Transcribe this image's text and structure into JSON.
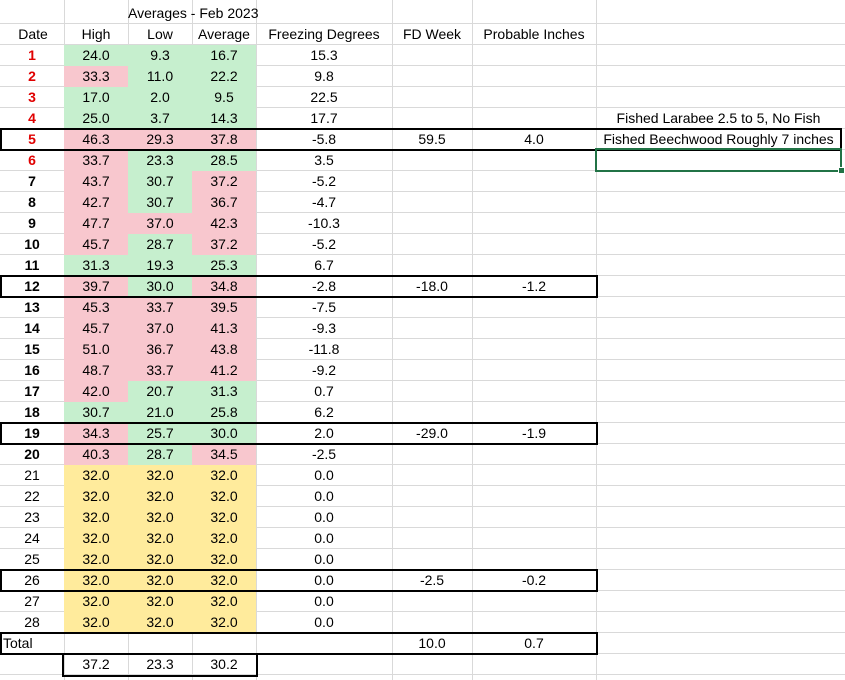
{
  "sheet": {
    "title": "Averages - Feb 2023",
    "headers": [
      "Date",
      "High",
      "Low",
      "Average",
      "Freezing Degrees",
      "FD Week",
      "Probable Inches"
    ],
    "rows": [
      {
        "date": "1",
        "high": "24.0",
        "low": "9.3",
        "avg": "16.7",
        "fd": "15.3",
        "fdw": "",
        "pi": "",
        "date_style": "red",
        "fills": [
          "green",
          "green",
          "green"
        ]
      },
      {
        "date": "2",
        "high": "33.3",
        "low": "11.0",
        "avg": "22.2",
        "fd": "9.8",
        "fdw": "",
        "pi": "",
        "date_style": "red",
        "fills": [
          "red",
          "green",
          "green"
        ]
      },
      {
        "date": "3",
        "high": "17.0",
        "low": "2.0",
        "avg": "9.5",
        "fd": "22.5",
        "fdw": "",
        "pi": "",
        "date_style": "red",
        "fills": [
          "green",
          "green",
          "green"
        ]
      },
      {
        "date": "4",
        "high": "25.0",
        "low": "3.7",
        "avg": "14.3",
        "fd": "17.7",
        "fdw": "",
        "pi": "",
        "date_style": "red",
        "fills": [
          "green",
          "green",
          "green"
        ]
      },
      {
        "date": "5",
        "high": "46.3",
        "low": "29.3",
        "avg": "37.8",
        "fd": "-5.8",
        "fdw": "59.5",
        "pi": "4.0",
        "date_style": "red",
        "fills": [
          "red",
          "red",
          "red"
        ]
      },
      {
        "date": "6",
        "high": "33.7",
        "low": "23.3",
        "avg": "28.5",
        "fd": "3.5",
        "fdw": "",
        "pi": "",
        "date_style": "red",
        "fills": [
          "red",
          "green",
          "green"
        ]
      },
      {
        "date": "7",
        "high": "43.7",
        "low": "30.7",
        "avg": "37.2",
        "fd": "-5.2",
        "fdw": "",
        "pi": "",
        "date_style": "bold",
        "fills": [
          "red",
          "green",
          "red"
        ]
      },
      {
        "date": "8",
        "high": "42.7",
        "low": "30.7",
        "avg": "36.7",
        "fd": "-4.7",
        "fdw": "",
        "pi": "",
        "date_style": "bold",
        "fills": [
          "red",
          "green",
          "red"
        ]
      },
      {
        "date": "9",
        "high": "47.7",
        "low": "37.0",
        "avg": "42.3",
        "fd": "-10.3",
        "fdw": "",
        "pi": "",
        "date_style": "bold",
        "fills": [
          "red",
          "red",
          "red"
        ]
      },
      {
        "date": "10",
        "high": "45.7",
        "low": "28.7",
        "avg": "37.2",
        "fd": "-5.2",
        "fdw": "",
        "pi": "",
        "date_style": "bold",
        "fills": [
          "red",
          "green",
          "red"
        ]
      },
      {
        "date": "11",
        "high": "31.3",
        "low": "19.3",
        "avg": "25.3",
        "fd": "6.7",
        "fdw": "",
        "pi": "",
        "date_style": "bold",
        "fills": [
          "green",
          "green",
          "green"
        ]
      },
      {
        "date": "12",
        "high": "39.7",
        "low": "30.0",
        "avg": "34.8",
        "fd": "-2.8",
        "fdw": "-18.0",
        "pi": "-1.2",
        "date_style": "bold",
        "fills": [
          "red",
          "green",
          "red"
        ]
      },
      {
        "date": "13",
        "high": "45.3",
        "low": "33.7",
        "avg": "39.5",
        "fd": "-7.5",
        "fdw": "",
        "pi": "",
        "date_style": "bold",
        "fills": [
          "red",
          "red",
          "red"
        ]
      },
      {
        "date": "14",
        "high": "45.7",
        "low": "37.0",
        "avg": "41.3",
        "fd": "-9.3",
        "fdw": "",
        "pi": "",
        "date_style": "bold",
        "fills": [
          "red",
          "red",
          "red"
        ]
      },
      {
        "date": "15",
        "high": "51.0",
        "low": "36.7",
        "avg": "43.8",
        "fd": "-11.8",
        "fdw": "",
        "pi": "",
        "date_style": "bold",
        "fills": [
          "red",
          "red",
          "red"
        ]
      },
      {
        "date": "16",
        "high": "48.7",
        "low": "33.7",
        "avg": "41.2",
        "fd": "-9.2",
        "fdw": "",
        "pi": "",
        "date_style": "bold",
        "fills": [
          "red",
          "red",
          "red"
        ]
      },
      {
        "date": "17",
        "high": "42.0",
        "low": "20.7",
        "avg": "31.3",
        "fd": "0.7",
        "fdw": "",
        "pi": "",
        "date_style": "bold",
        "fills": [
          "red",
          "green",
          "green"
        ]
      },
      {
        "date": "18",
        "high": "30.7",
        "low": "21.0",
        "avg": "25.8",
        "fd": "6.2",
        "fdw": "",
        "pi": "",
        "date_style": "bold",
        "fills": [
          "green",
          "green",
          "green"
        ]
      },
      {
        "date": "19",
        "high": "34.3",
        "low": "25.7",
        "avg": "30.0",
        "fd": "2.0",
        "fdw": "-29.0",
        "pi": "-1.9",
        "date_style": "bold",
        "fills": [
          "red",
          "green",
          "green"
        ]
      },
      {
        "date": "20",
        "high": "40.3",
        "low": "28.7",
        "avg": "34.5",
        "fd": "-2.5",
        "fdw": "",
        "pi": "",
        "date_style": "bold",
        "fills": [
          "red",
          "green",
          "red"
        ]
      },
      {
        "date": "21",
        "high": "32.0",
        "low": "32.0",
        "avg": "32.0",
        "fd": "0.0",
        "fdw": "",
        "pi": "",
        "date_style": "plain",
        "fills": [
          "yellow",
          "yellow",
          "yellow"
        ]
      },
      {
        "date": "22",
        "high": "32.0",
        "low": "32.0",
        "avg": "32.0",
        "fd": "0.0",
        "fdw": "",
        "pi": "",
        "date_style": "plain",
        "fills": [
          "yellow",
          "yellow",
          "yellow"
        ]
      },
      {
        "date": "23",
        "high": "32.0",
        "low": "32.0",
        "avg": "32.0",
        "fd": "0.0",
        "fdw": "",
        "pi": "",
        "date_style": "plain",
        "fills": [
          "yellow",
          "yellow",
          "yellow"
        ]
      },
      {
        "date": "24",
        "high": "32.0",
        "low": "32.0",
        "avg": "32.0",
        "fd": "0.0",
        "fdw": "",
        "pi": "",
        "date_style": "plain",
        "fills": [
          "yellow",
          "yellow",
          "yellow"
        ]
      },
      {
        "date": "25",
        "high": "32.0",
        "low": "32.0",
        "avg": "32.0",
        "fd": "0.0",
        "fdw": "",
        "pi": "",
        "date_style": "plain",
        "fills": [
          "yellow",
          "yellow",
          "yellow"
        ]
      },
      {
        "date": "26",
        "high": "32.0",
        "low": "32.0",
        "avg": "32.0",
        "fd": "0.0",
        "fdw": "-2.5",
        "pi": "-0.2",
        "date_style": "plain",
        "fills": [
          "yellow",
          "yellow",
          "yellow"
        ]
      },
      {
        "date": "27",
        "high": "32.0",
        "low": "32.0",
        "avg": "32.0",
        "fd": "0.0",
        "fdw": "",
        "pi": "",
        "date_style": "plain",
        "fills": [
          "yellow",
          "yellow",
          "yellow"
        ]
      },
      {
        "date": "28",
        "high": "32.0",
        "low": "32.0",
        "avg": "32.0",
        "fd": "0.0",
        "fdw": "",
        "pi": "",
        "date_style": "plain",
        "fills": [
          "yellow",
          "yellow",
          "yellow"
        ]
      }
    ],
    "total": {
      "label": "Total",
      "fdw": "10.0",
      "pi": "0.7"
    },
    "averages": {
      "high": "37.2",
      "low": "23.3",
      "avg": "30.2"
    },
    "notes": {
      "row4": "Fished Larabee 2.5 to 5, No Fish",
      "row5": "Fished Beechwood Roughly 7 inches"
    },
    "colors": {
      "red_fill": "#f8c7ce",
      "green_fill": "#c6efce",
      "yellow_fill": "#ffeb9c",
      "date_red": "#e00000",
      "selection": "#217346",
      "gridline": "#d9d9d9"
    }
  }
}
